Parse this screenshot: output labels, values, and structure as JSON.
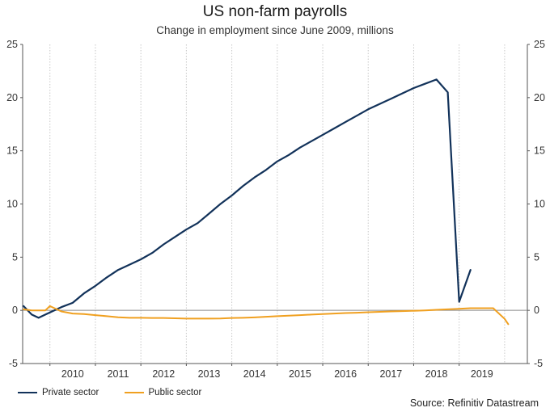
{
  "chart_data": {
    "type": "line",
    "title": "US non-farm payrolls",
    "subtitle": "Change in employment since June 2009, millions",
    "xlabel": "",
    "ylabel": "",
    "ylim": [
      -5,
      25
    ],
    "yticks": [
      "-5",
      "0",
      "5",
      "10",
      "15",
      "20",
      "25"
    ],
    "x_tick_labels": [
      "2010",
      "2011",
      "2012",
      "2013",
      "2014",
      "2015",
      "2016",
      "2017",
      "2018",
      "2019"
    ],
    "grid": true,
    "legend_position": "bottom-left",
    "colors": {
      "private": "#12325a",
      "public": "#f0a020",
      "grid": "#c8c8c8",
      "zero": "#8a8a8a"
    },
    "series": [
      {
        "name": "Private sector",
        "color": "#12325a",
        "x": [
          2009.42,
          2009.6,
          2009.75,
          2009.9,
          2010.0,
          2010.25,
          2010.5,
          2010.75,
          2011.0,
          2011.25,
          2011.5,
          2011.75,
          2012.0,
          2012.25,
          2012.5,
          2012.75,
          2013.0,
          2013.25,
          2013.5,
          2013.75,
          2014.0,
          2014.25,
          2014.5,
          2014.75,
          2015.0,
          2015.25,
          2015.5,
          2015.75,
          2016.0,
          2016.25,
          2016.5,
          2016.75,
          2017.0,
          2017.25,
          2017.5,
          2017.75,
          2018.0,
          2018.25,
          2018.5,
          2018.75,
          2019.0,
          2019.25,
          2019.5,
          2019.75,
          2020.0,
          2020.08,
          2020.17,
          2020.25,
          2020.33,
          2020.42
        ],
        "y": [
          0.4,
          -0.4,
          -0.7,
          -0.4,
          -0.2,
          0.3,
          0.7,
          1.6,
          2.3,
          3.1,
          3.8,
          4.3,
          4.8,
          5.4,
          6.2,
          6.9,
          7.6,
          8.2,
          9.1,
          10.0,
          10.8,
          11.7,
          12.5,
          13.2,
          14.0,
          14.6,
          15.3,
          15.9,
          16.5,
          17.1,
          17.7,
          18.3,
          18.9,
          19.4,
          19.9,
          20.4,
          20.9,
          21.3,
          21.7,
          20.5,
          0.8,
          3.8,
          null,
          null,
          null,
          null,
          null,
          null,
          null,
          null
        ]
      },
      {
        "name": "Public sector",
        "color": "#f0a020",
        "x": [
          2009.42,
          2009.6,
          2009.75,
          2009.9,
          2010.0,
          2010.25,
          2010.5,
          2010.75,
          2011.0,
          2011.25,
          2011.5,
          2011.75,
          2012.0,
          2012.25,
          2012.5,
          2012.75,
          2013.0,
          2013.25,
          2013.5,
          2013.75,
          2014.0,
          2014.25,
          2014.5,
          2014.75,
          2015.0,
          2015.25,
          2015.5,
          2015.75,
          2016.0,
          2016.25,
          2016.5,
          2016.75,
          2017.0,
          2017.25,
          2017.5,
          2017.75,
          2018.0,
          2018.25,
          2018.5,
          2018.75,
          2019.0,
          2019.25,
          2019.5,
          2019.75,
          2020.0,
          2020.08,
          2020.17,
          2020.25,
          2020.33,
          2020.42
        ],
        "y": [
          0.1,
          0.0,
          0.0,
          0.0,
          0.4,
          -0.1,
          -0.3,
          -0.35,
          -0.45,
          -0.55,
          -0.65,
          -0.7,
          -0.7,
          -0.72,
          -0.72,
          -0.75,
          -0.78,
          -0.78,
          -0.78,
          -0.76,
          -0.72,
          -0.7,
          -0.66,
          -0.6,
          -0.55,
          -0.5,
          -0.45,
          -0.4,
          -0.35,
          -0.3,
          -0.25,
          -0.22,
          -0.18,
          -0.14,
          -0.1,
          -0.07,
          -0.04,
          0.0,
          0.05,
          0.1,
          0.15,
          0.2,
          0.2,
          0.2,
          -0.8,
          -1.3,
          null,
          null,
          null,
          null
        ]
      }
    ]
  },
  "source": "Source: Refinitiv Datastream"
}
